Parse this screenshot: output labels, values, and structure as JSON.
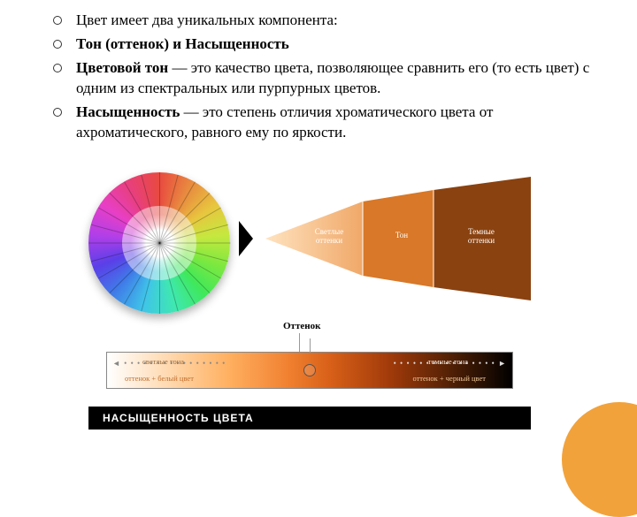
{
  "bullets": [
    {
      "prefix": "",
      "bold": "",
      "rest": "Цвет имеет два уникальных компонента:"
    },
    {
      "prefix": "",
      "bold": "Тон (оттенок) и Насыщенность",
      "rest": ""
    },
    {
      "prefix": "",
      "bold": "Цветовой тон",
      "rest": " — это качество цвета, позволяющее сравнить его (то есть цвет) с одним из спектральных или пурпурных цветов."
    },
    {
      "prefix": "",
      "bold": "Насыщенность",
      "rest": " — это степень отличия хроматического цвета от ахроматического, равного ему по яркости."
    }
  ],
  "wedge": {
    "label_light": "Светлые оттенки",
    "label_tone": "Тон",
    "label_dark": "Темные оттенки",
    "colors": {
      "light": "#f0a868",
      "mid": "#d87828",
      "dark": "#8a4210"
    }
  },
  "hue_label": "Оттенок",
  "bar": {
    "top_left": "светлые тона",
    "bottom_left": "оттенок + белый цвет",
    "top_right": "темные тона",
    "bottom_right": "оттенок + черный цвет",
    "arrow_dots": "• • • • • • • • • • • • • • • •"
  },
  "saturation_caption": "НАСЫЩЕННОСТЬ ЦВЕТА",
  "colors": {
    "corner": "#f2a23a"
  }
}
